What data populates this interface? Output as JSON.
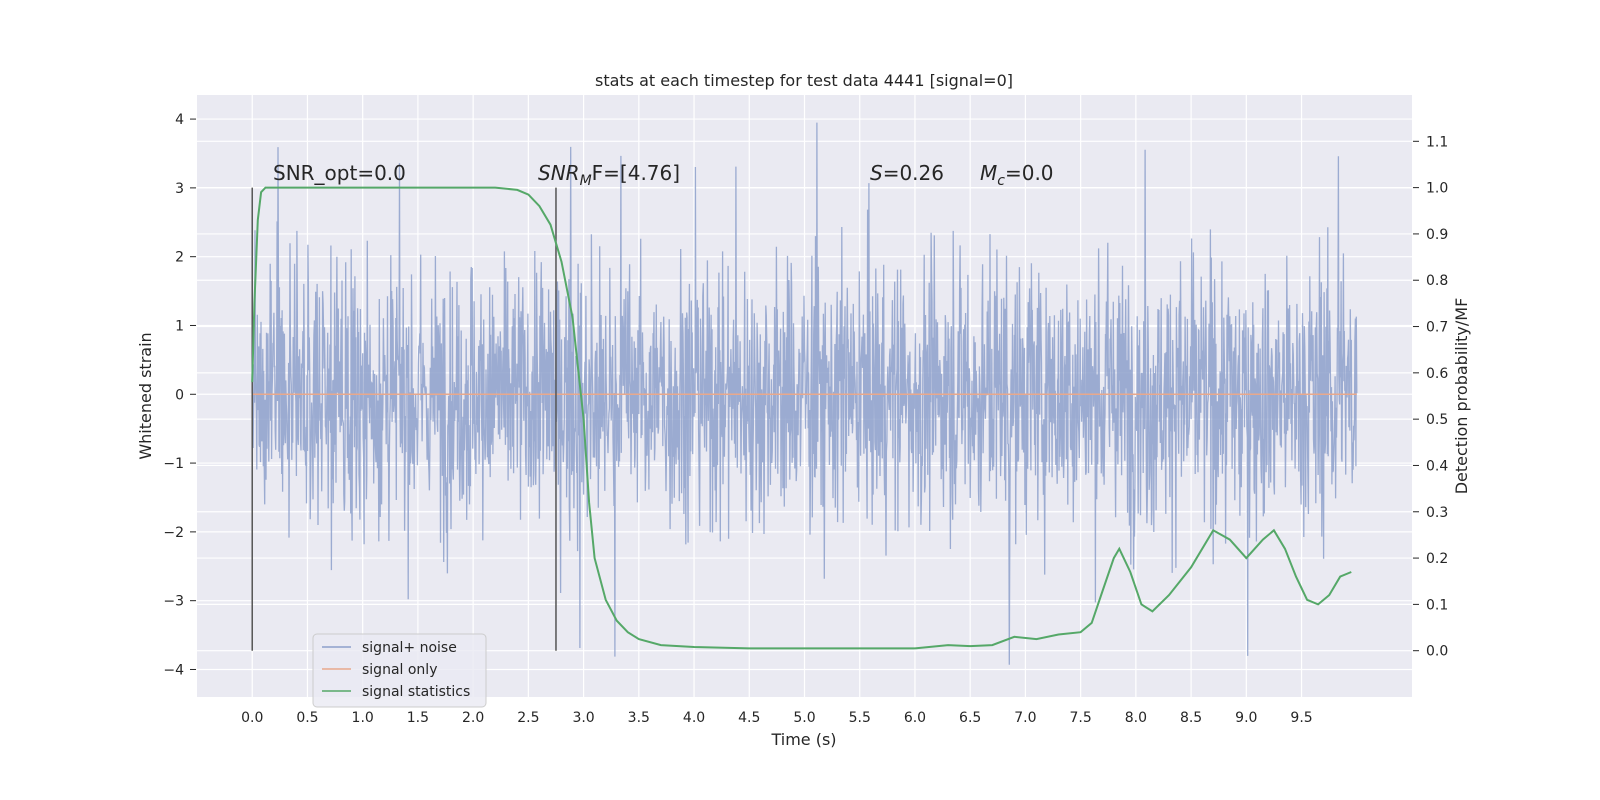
{
  "chart_data": {
    "type": "line",
    "title": "stats at each timestep for test data 4441 [signal=0]",
    "xlabel": "Time (s)",
    "ylabel": "Whitened strain",
    "y2label": "Detection probability/MF",
    "xlim": [
      -0.5,
      10.5
    ],
    "ylim": [
      -4.4,
      4.35
    ],
    "y2lim": [
      -0.1,
      1.2
    ],
    "xticks": [
      "0.0",
      "0.5",
      "1.0",
      "1.5",
      "2.0",
      "2.5",
      "3.0",
      "3.5",
      "4.0",
      "4.5",
      "5.0",
      "5.5",
      "6.0",
      "6.5",
      "7.0",
      "7.5",
      "8.0",
      "8.5",
      "9.0",
      "9.5"
    ],
    "yticks": [
      "4",
      "3",
      "2",
      "1",
      "0",
      "−1",
      "−2",
      "−3",
      "−4"
    ],
    "y2ticks": [
      "1.1",
      "1.0",
      "0.9",
      "0.8",
      "0.7",
      "0.6",
      "0.5",
      "0.4",
      "0.3",
      "0.2",
      "0.1",
      "0.0"
    ],
    "grid": true,
    "legend_position": "lower-left",
    "annotations": {
      "snr_opt": "SNR_opt=0.0",
      "snr_mf_main": "SNR",
      "snr_mf_sub": "M",
      "snr_mf_rest": "F=[4.76]",
      "s_main": "S",
      "s_rest": "=0.26",
      "mc_main": "M",
      "mc_sub": "c",
      "mc_rest": "=0.0"
    },
    "vlines": [
      0.0,
      2.75
    ],
    "series": [
      {
        "name": "signal+ noise",
        "color": "#8da0cb",
        "axis": "left",
        "x_range": [
          0.0,
          10.0
        ],
        "envelope_max": 3.95,
        "envelope_min": -4.05,
        "typical_abs": 2.5
      },
      {
        "name": "signal only",
        "color": "#e8a88c",
        "axis": "left",
        "x": [
          0.0,
          10.0
        ],
        "y": [
          0.0,
          0.0
        ]
      },
      {
        "name": "signal statistics",
        "color": "#55a868",
        "axis": "right",
        "x": [
          0.0,
          0.02,
          0.05,
          0.08,
          0.12,
          0.2,
          0.4,
          0.8,
          1.2,
          1.6,
          2.0,
          2.2,
          2.4,
          2.5,
          2.6,
          2.7,
          2.8,
          2.9,
          3.0,
          3.05,
          3.1,
          3.2,
          3.3,
          3.4,
          3.5,
          3.7,
          4.0,
          4.5,
          5.0,
          5.5,
          6.0,
          6.3,
          6.5,
          6.7,
          6.9,
          7.1,
          7.3,
          7.5,
          7.6,
          7.7,
          7.8,
          7.85,
          7.95,
          8.05,
          8.15,
          8.3,
          8.5,
          8.7,
          8.85,
          9.0,
          9.15,
          9.25,
          9.35,
          9.45,
          9.55,
          9.65,
          9.75,
          9.85,
          9.95
        ],
        "y": [
          0.58,
          0.75,
          0.93,
          0.99,
          1.0,
          1.0,
          1.0,
          1.0,
          1.0,
          1.0,
          1.0,
          1.0,
          0.995,
          0.985,
          0.96,
          0.92,
          0.84,
          0.72,
          0.5,
          0.32,
          0.2,
          0.11,
          0.065,
          0.04,
          0.025,
          0.012,
          0.008,
          0.005,
          0.005,
          0.005,
          0.005,
          0.012,
          0.01,
          0.012,
          0.03,
          0.025,
          0.035,
          0.04,
          0.06,
          0.13,
          0.2,
          0.22,
          0.17,
          0.1,
          0.085,
          0.12,
          0.18,
          0.26,
          0.24,
          0.2,
          0.24,
          0.26,
          0.22,
          0.16,
          0.11,
          0.1,
          0.12,
          0.16,
          0.17
        ]
      }
    ]
  }
}
